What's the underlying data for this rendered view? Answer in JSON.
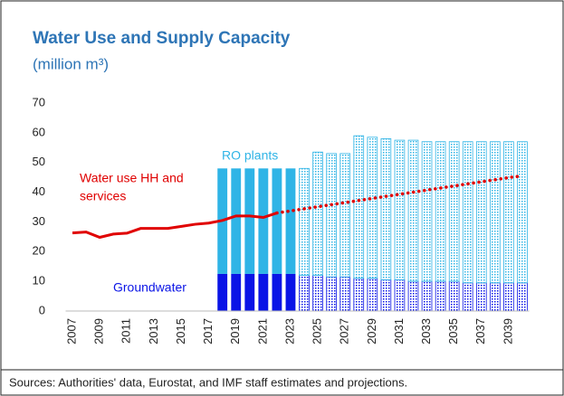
{
  "chart_data": {
    "type": "bar_line",
    "title": "Water Use and Supply Capacity",
    "subtitle": "(million m³)",
    "footnote": "Sources: Authorities' data, Eurostat, and IMF staff estimates and projections.",
    "categories": [
      "2007",
      null,
      "2009",
      null,
      "2011",
      null,
      "2013",
      null,
      "2015",
      null,
      "2017",
      null,
      "2019",
      null,
      "2021",
      null,
      "2023",
      null,
      "2025",
      null,
      "2027",
      null,
      "2029",
      null,
      "2031",
      null,
      "2033",
      null,
      "2035",
      null,
      "2037",
      null,
      "2039",
      null
    ],
    "ylim": [
      0,
      70
    ],
    "yticks": [
      0,
      10,
      20,
      30,
      40,
      50,
      60,
      70
    ],
    "grid": false,
    "series": [
      {
        "name": "Groundwater",
        "kind": "bar",
        "style": "solid",
        "color": "#0a14e6",
        "values": [
          null,
          null,
          null,
          null,
          null,
          null,
          null,
          null,
          null,
          null,
          null,
          12.5,
          12.5,
          12.5,
          12.5,
          12.5,
          12.5,
          null,
          null,
          null,
          null,
          null,
          null,
          null,
          null,
          null,
          null,
          null,
          null,
          null,
          null,
          null,
          null,
          null
        ]
      },
      {
        "name": "RO plants",
        "kind": "bar",
        "style": "solid",
        "color": "#2fb4e6",
        "values": [
          null,
          null,
          null,
          null,
          null,
          null,
          null,
          null,
          null,
          null,
          null,
          35.5,
          35.5,
          35.5,
          35.5,
          35.5,
          35.5,
          null,
          null,
          null,
          null,
          null,
          null,
          null,
          null,
          null,
          null,
          null,
          null,
          null,
          null,
          null,
          null,
          null
        ]
      },
      {
        "kind": "bar",
        "style": "dotted",
        "color": "#0a14e6",
        "values": [
          null,
          null,
          null,
          null,
          null,
          null,
          null,
          null,
          null,
          null,
          null,
          null,
          null,
          null,
          null,
          null,
          null,
          12,
          12,
          11.5,
          11.5,
          11,
          11,
          10.5,
          10.5,
          10,
          10,
          10,
          10,
          9.5,
          9.5,
          9.5,
          9.5,
          9.5
        ]
      },
      {
        "kind": "bar",
        "style": "dotted",
        "color": "#2fb4e6",
        "values": [
          null,
          null,
          null,
          null,
          null,
          null,
          null,
          null,
          null,
          null,
          null,
          null,
          null,
          null,
          null,
          null,
          null,
          36,
          41.5,
          41.5,
          41.5,
          48,
          47.5,
          47.5,
          47,
          47.5,
          47,
          47,
          47,
          47.5,
          47.5,
          47.5,
          47.5,
          47.5
        ]
      },
      {
        "name": "Water use HH and services",
        "kind": "line",
        "style": "solid",
        "color": "#e00000",
        "values": [
          26.3,
          26.6,
          24.8,
          25.9,
          26.2,
          27.8,
          27.8,
          27.8,
          28.5,
          29.2,
          29.6,
          30.5,
          32,
          32,
          31.5,
          33,
          null,
          null,
          null,
          null,
          null,
          null,
          null,
          null,
          null,
          null,
          null,
          null,
          null,
          null,
          null,
          null,
          null,
          null
        ]
      },
      {
        "kind": "line",
        "style": "dotted",
        "color": "#e00000",
        "values": [
          null,
          null,
          null,
          null,
          null,
          null,
          null,
          null,
          null,
          null,
          null,
          null,
          null,
          null,
          null,
          33,
          33.7,
          34.4,
          35.1,
          35.8,
          36.5,
          37.2,
          37.9,
          38.6,
          39.3,
          40,
          40.7,
          41.4,
          42.1,
          42.8,
          43.5,
          44.2,
          44.9,
          45.5
        ]
      }
    ],
    "annotations": [
      {
        "lines": [
          "RO plants"
        ],
        "color": "#2fb4e6"
      },
      {
        "lines": [
          "Water use HH and",
          "services"
        ],
        "color": "#e00000"
      },
      {
        "lines": [
          "Groundwater"
        ],
        "color": "#0a14e6"
      }
    ]
  }
}
